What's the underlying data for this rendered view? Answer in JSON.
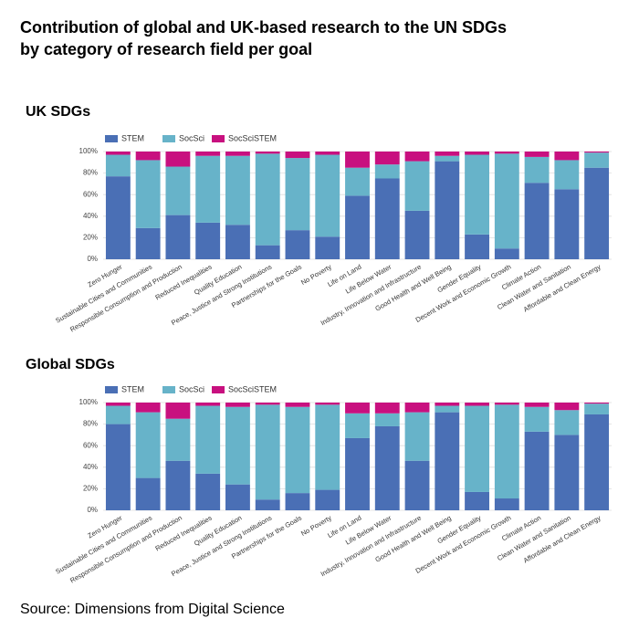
{
  "title": [
    "Contribution of global and UK-based research to the UN SDGs",
    "by category of research field per goal"
  ],
  "source": "Source: Dimensions from Digital Science",
  "chart_data": [
    {
      "type": "stacked_bar",
      "title": "UK SDGs",
      "categories": [
        "Zero Hunger",
        "Sustainable Cities and Communities",
        "Responsible Consumption and Production",
        "Reduced Inequalities",
        "Quality Education",
        "Peace, Justice and Strong Institutions",
        "Partnerships for the Goals",
        "No Poverty",
        "Life on Land",
        "Life Below Water",
        "Industry, Innovation and Infrastructure",
        "Good Health and Well Being",
        "Gender Equality",
        "Decent Work and Economic Growth",
        "Climate Action",
        "Clean Water and Sanitation",
        "Affordable and Clean Energy"
      ],
      "series": [
        {
          "name": "STEM",
          "color": "#4a6fb5",
          "values": [
            77,
            29,
            41,
            34,
            32,
            13,
            27,
            21,
            59,
            75,
            45,
            91,
            23,
            10,
            71,
            65,
            85
          ]
        },
        {
          "name": "SocSci",
          "color": "#67b3c9",
          "values": [
            20,
            63,
            45,
            62,
            64,
            85,
            67,
            76,
            26,
            13,
            46,
            5,
            74,
            88,
            24,
            27,
            14
          ]
        },
        {
          "name": "SocSciSTEM",
          "color": "#c8107f",
          "values": [
            3,
            8,
            14,
            4,
            4,
            2,
            6,
            3,
            15,
            12,
            9,
            4,
            3,
            2,
            5,
            8,
            1
          ]
        }
      ],
      "ylim": [
        0,
        100
      ],
      "yticks": [
        {
          "value": 0,
          "label": "0%"
        },
        {
          "value": 20,
          "label": "20%"
        },
        {
          "value": 40,
          "label": "40%"
        },
        {
          "value": 60,
          "label": "60%"
        },
        {
          "value": 80,
          "label": "80%"
        },
        {
          "value": 100,
          "label": "100%"
        }
      ],
      "grid": true,
      "legend": "top-left"
    },
    {
      "type": "stacked_bar",
      "title": "Global SDGs",
      "categories": [
        "Zero Hunger",
        "Sustainable Cities and Communities",
        "Responsible Consumption and Production",
        "Reduced Inequalities",
        "Quality Education",
        "Peace, Justice and Strong Institutions",
        "Partnerships for the Goals",
        "No Poverty",
        "Life on Land",
        "Life Below Water",
        "Industry, Innovation and Infrastructure",
        "Good Health and Well Being",
        "Gender Equality",
        "Decent Work and Economic Growth",
        "Climate Action",
        "Clean Water and Sanitation",
        "Affordable and Clean Energy"
      ],
      "series": [
        {
          "name": "STEM",
          "color": "#4a6fb5",
          "values": [
            80,
            30,
            46,
            34,
            24,
            10,
            16,
            19,
            67,
            78,
            46,
            91,
            17,
            11,
            73,
            70,
            89
          ]
        },
        {
          "name": "SocSci",
          "color": "#67b3c9",
          "values": [
            17,
            61,
            39,
            63,
            72,
            88,
            80,
            79,
            23,
            12,
            45,
            6,
            80,
            87,
            23,
            23,
            10
          ]
        },
        {
          "name": "SocSciSTEM",
          "color": "#c8107f",
          "values": [
            3,
            9,
            15,
            3,
            4,
            2,
            4,
            2,
            10,
            10,
            9,
            3,
            3,
            2,
            4,
            7,
            1
          ]
        }
      ],
      "ylim": [
        0,
        100
      ],
      "yticks": [
        {
          "value": 0,
          "label": "0%"
        },
        {
          "value": 20,
          "label": "20%"
        },
        {
          "value": 40,
          "label": "40%"
        },
        {
          "value": 60,
          "label": "60%"
        },
        {
          "value": 80,
          "label": "80%"
        },
        {
          "value": 100,
          "label": "100%"
        }
      ],
      "grid": true,
      "legend": "top-left"
    }
  ]
}
